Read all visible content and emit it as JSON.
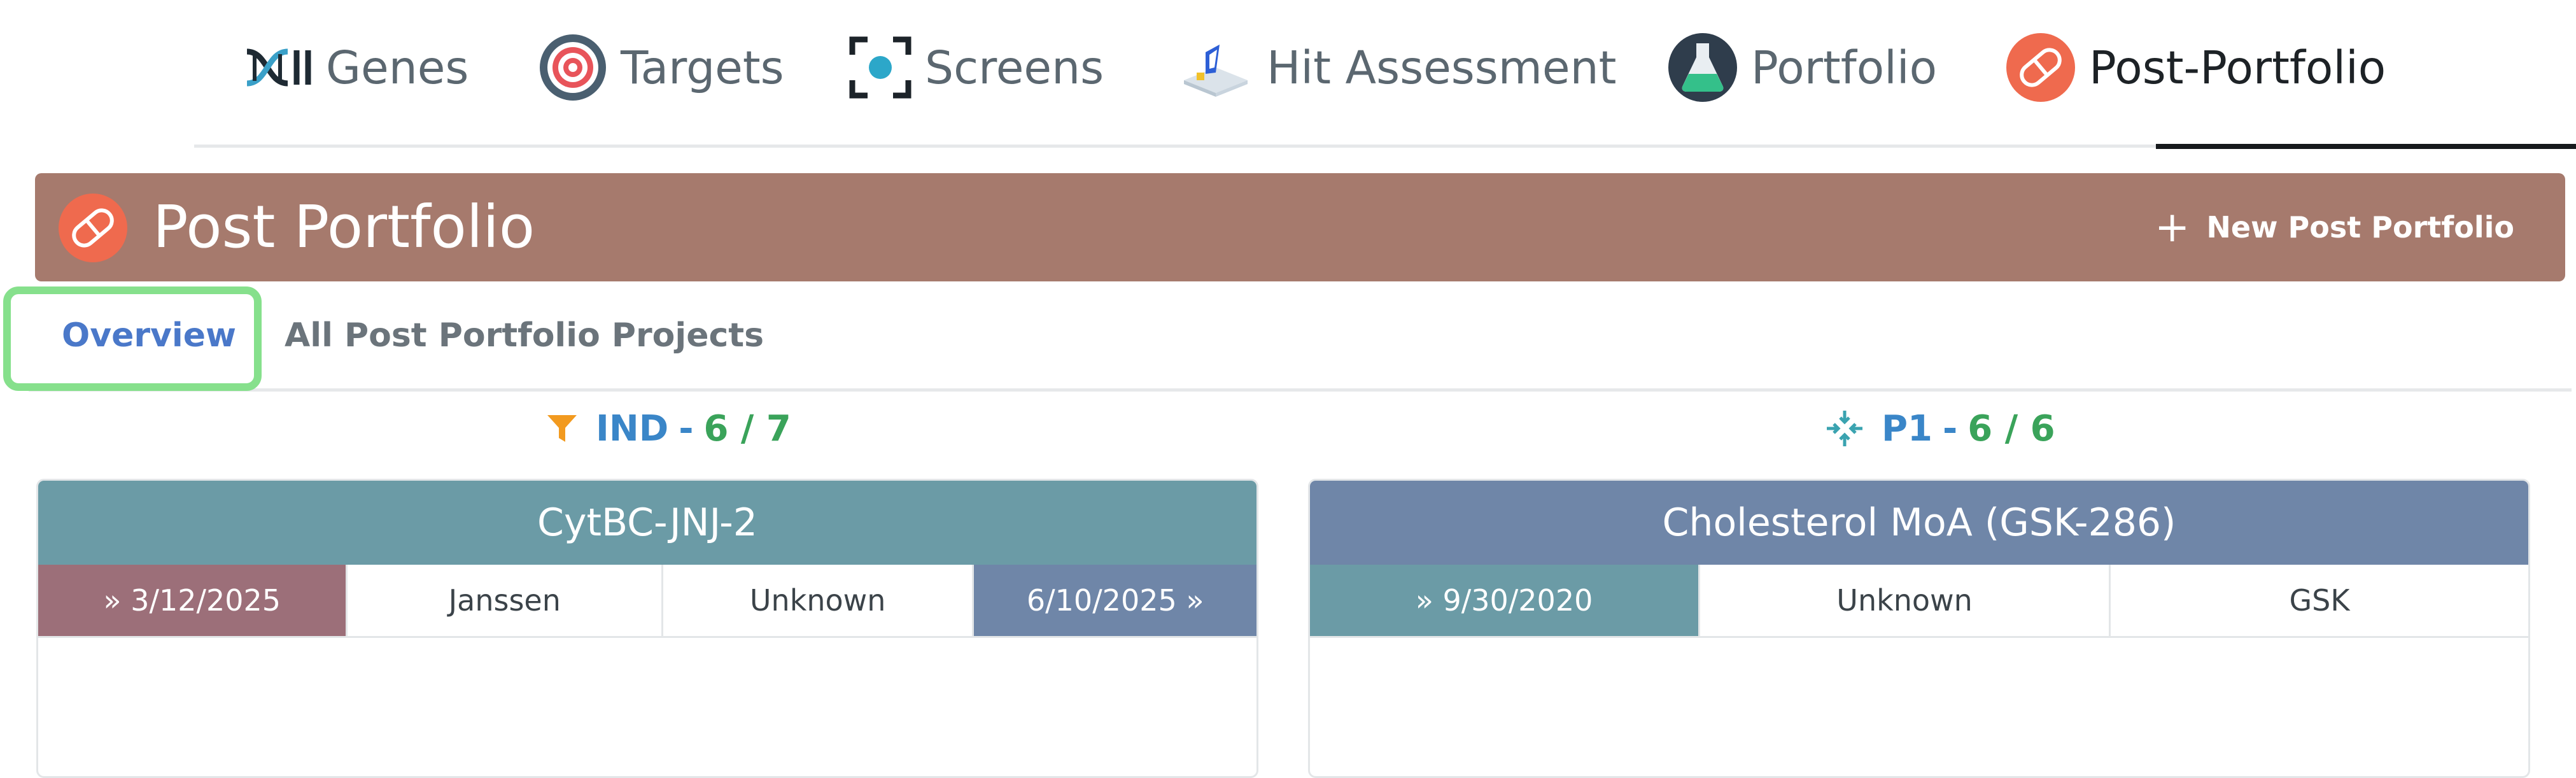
{
  "nav": {
    "items": [
      {
        "label": "Genes",
        "icon": "dna-icon"
      },
      {
        "label": "Targets",
        "icon": "target-icon"
      },
      {
        "label": "Screens",
        "icon": "screen-scan-icon"
      },
      {
        "label": "Hit Assessment",
        "icon": "hit-assessment-icon"
      },
      {
        "label": "Portfolio",
        "icon": "flask-icon"
      },
      {
        "label": "Post-Portfolio",
        "icon": "pill-icon",
        "active": true
      }
    ]
  },
  "header": {
    "title": "Post Portfolio",
    "new_button_label": "New Post Portfolio",
    "background": "#a67a6d"
  },
  "tabs": [
    {
      "label": "Overview",
      "selected": true
    },
    {
      "label": "All Post Portfolio Projects",
      "selected": false
    }
  ],
  "stages": [
    {
      "name": "IND",
      "count": "6 / 7",
      "icon": "funnel-icon",
      "card": {
        "title": "CytBC-JNJ-2",
        "title_color": "#6b9ba6",
        "cells": [
          "» 3/12/2025",
          "Janssen",
          "Unknown",
          "6/10/2025 »"
        ]
      }
    },
    {
      "name": "P1",
      "count": "6 / 6",
      "icon": "compress-arrows-icon",
      "card": {
        "title": "Cholesterol MoA (GSK-286)",
        "title_color": "#6f86a8",
        "cells": [
          "» 9/30/2020",
          "Unknown",
          "GSK"
        ]
      }
    }
  ],
  "colors": {
    "accent_blue": "#4a78c9",
    "count_green": "#3aa35a",
    "date_start_ind": "#9c6f79",
    "date_end_ind": "#6f86a8",
    "date_start_p1": "#6b9ba6",
    "focus": "#86e08c"
  }
}
